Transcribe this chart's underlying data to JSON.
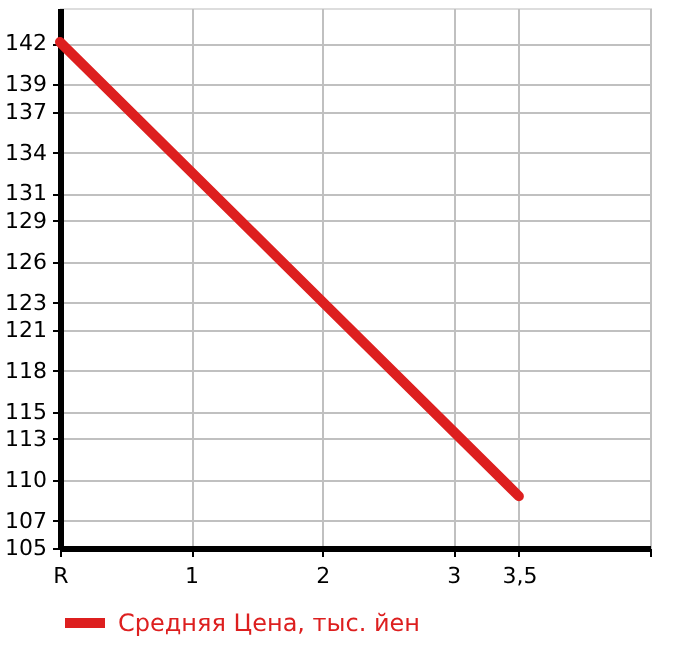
{
  "chart_data": {
    "type": "line",
    "x": [
      0,
      3.5
    ],
    "series": [
      {
        "name": "Средняя Цена, тыс. йен",
        "color": "#dd1f1f",
        "values": [
          142.1,
          108.8
        ]
      }
    ],
    "xlim": [
      0,
      4.5
    ],
    "xticks": [
      {
        "value": 0,
        "label": "R"
      },
      1,
      2,
      3,
      {
        "value": 3.5,
        "label": "3,5"
      },
      {
        "value": 4.5,
        "label": null
      }
    ],
    "ylim": [
      105,
      144.6
    ],
    "yticks": [
      105,
      107,
      110,
      113,
      115,
      118,
      121,
      123,
      126,
      129,
      131,
      134,
      137,
      139,
      142
    ],
    "grid": true,
    "legend": "bottom",
    "marker": "none",
    "line_style": "solid"
  }
}
